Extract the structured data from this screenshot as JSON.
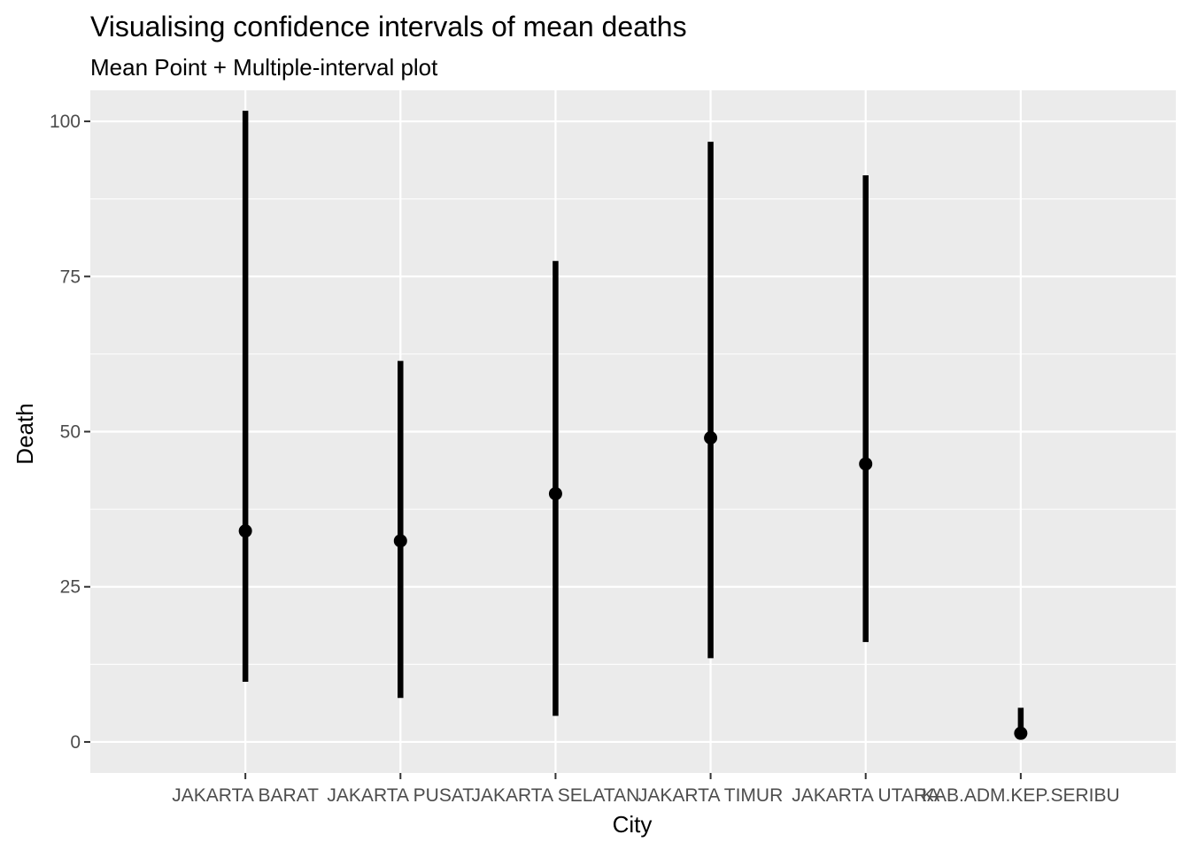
{
  "chart_data": {
    "type": "errorbar",
    "title": "Visualising confidence intervals of mean deaths",
    "subtitle": "Mean Point + Multiple-interval plot",
    "xlabel": "City",
    "ylabel": "Death",
    "categories": [
      "JAKARTA BARAT",
      "JAKARTA PUSAT",
      "JAKARTA SELATAN",
      "JAKARTA TIMUR",
      "JAKARTA UTARA",
      "KAB.ADM.KEP.SERIBU"
    ],
    "mean": [
      34.0,
      32.4,
      40.0,
      49.0,
      44.8,
      1.4
    ],
    "lower": [
      9.7,
      7.1,
      4.2,
      13.5,
      16.1,
      0.9
    ],
    "upper": [
      101.7,
      61.4,
      77.5,
      96.7,
      91.3,
      5.5
    ],
    "ylim": [
      -5,
      105
    ],
    "yticks": [
      0,
      25,
      50,
      75,
      100
    ],
    "yminor": [
      12.5,
      37.5,
      62.5,
      87.5
    ],
    "grid": true,
    "legend": "none",
    "colors": {
      "panel_background": "#ebebeb",
      "grid": "#ffffff",
      "marks": "#000000",
      "tick_text": "#4d4d4d"
    }
  }
}
